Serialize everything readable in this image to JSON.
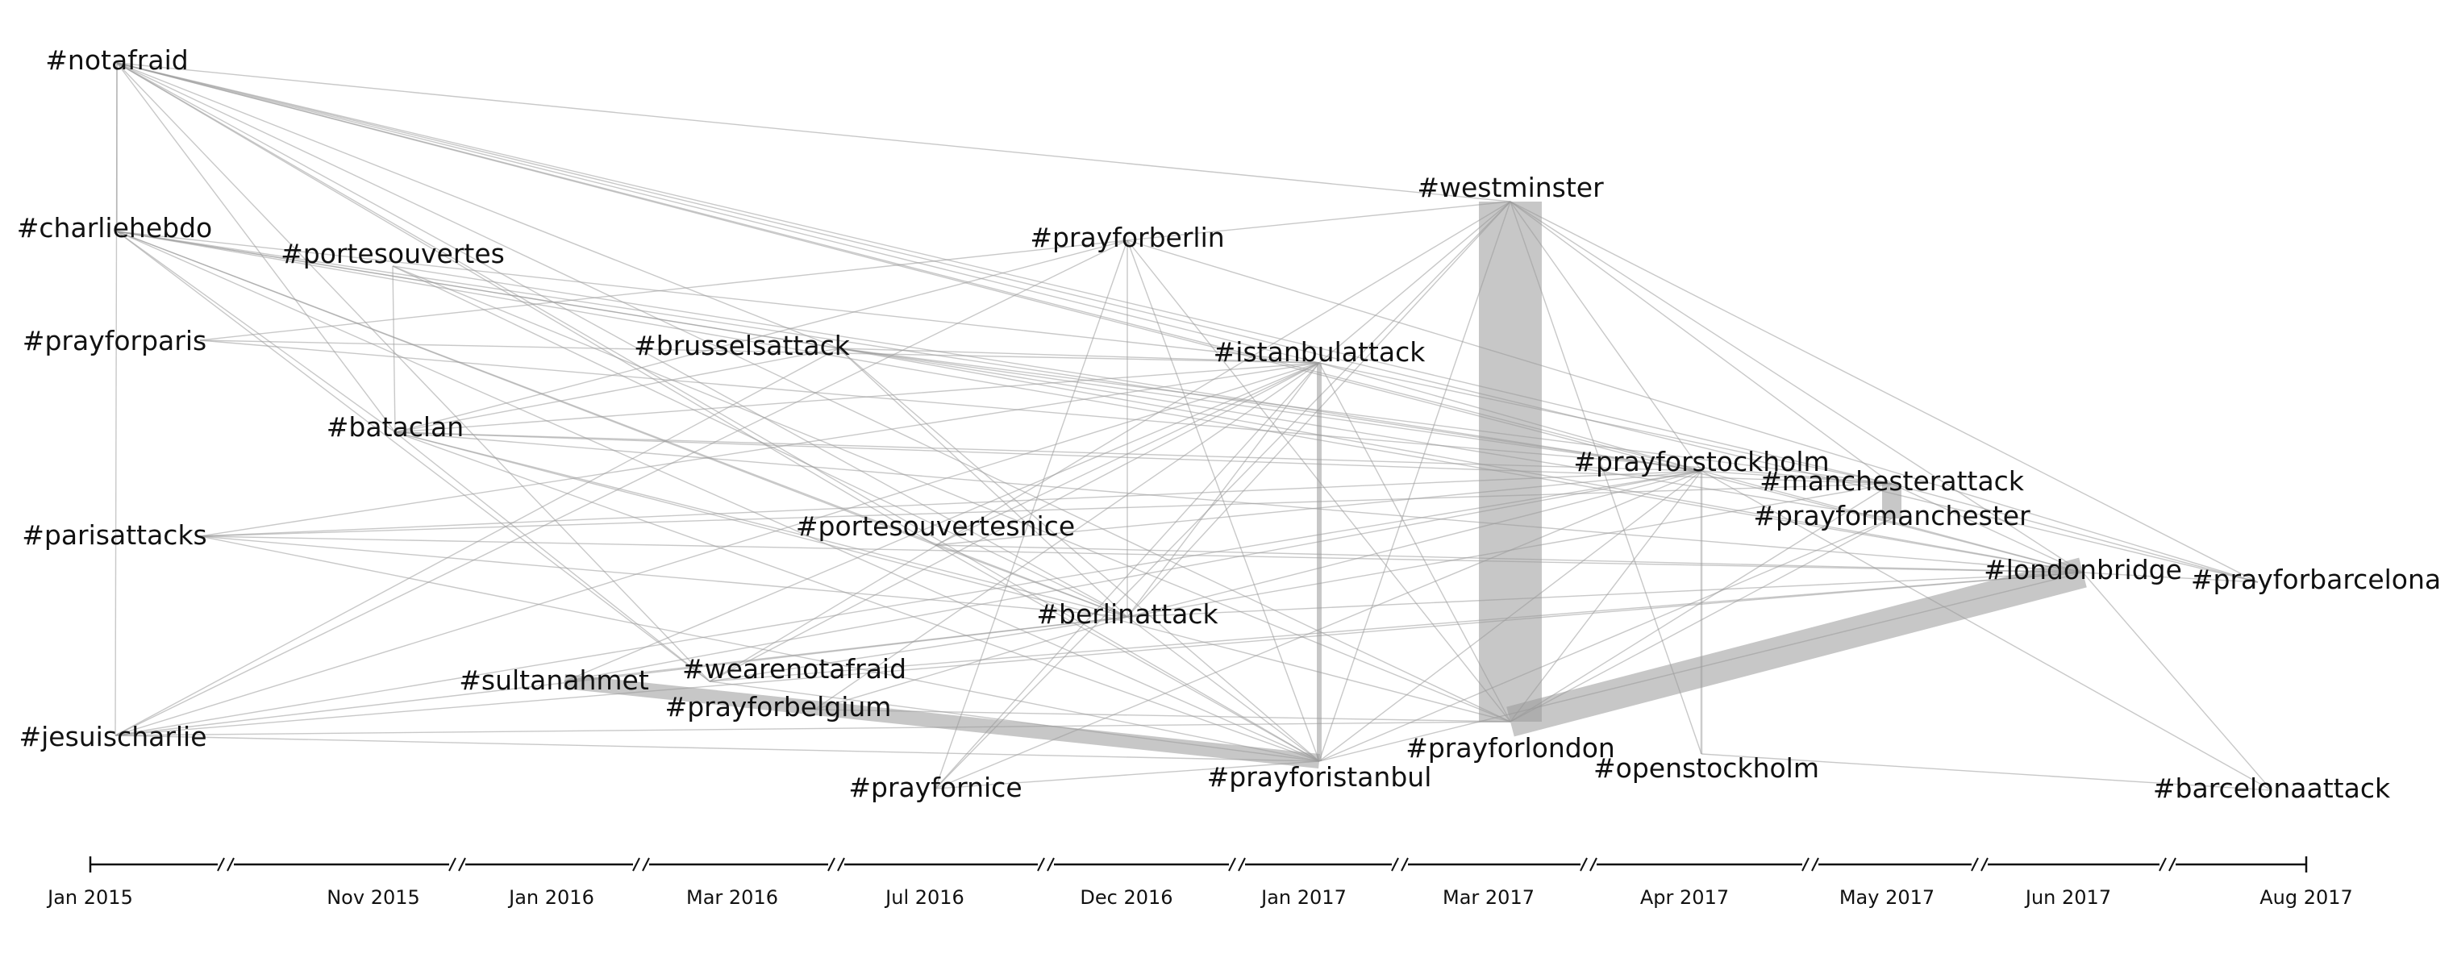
{
  "nodes": [
    {
      "id": "notafraid",
      "label": "#notafraid"
    },
    {
      "id": "charliehebdo",
      "label": "#charliehebdo"
    },
    {
      "id": "portesouvertes",
      "label": "#portesouvertes"
    },
    {
      "id": "prayforparis",
      "label": "#prayforparis"
    },
    {
      "id": "brusselsattack",
      "label": "#brusselsattack"
    },
    {
      "id": "bataclan",
      "label": "#bataclan"
    },
    {
      "id": "parisattacks",
      "label": "#parisattacks"
    },
    {
      "id": "portesouvertesnice",
      "label": "#portesouvertesnice"
    },
    {
      "id": "sultanahmet",
      "label": "#sultanahmet"
    },
    {
      "id": "wearenotafraid",
      "label": "#wearenotafraid"
    },
    {
      "id": "prayforbelgium",
      "label": "#prayforbelgium"
    },
    {
      "id": "jesuischarlie",
      "label": "#jesuischarlie"
    },
    {
      "id": "prayfornice",
      "label": "#prayfornice"
    },
    {
      "id": "prayforberlin",
      "label": "#prayforberlin"
    },
    {
      "id": "berlinattack",
      "label": "#berlinattack"
    },
    {
      "id": "istanbulattack",
      "label": "#istanbulattack"
    },
    {
      "id": "prayforistanbul",
      "label": "#prayforistanbul"
    },
    {
      "id": "westminster",
      "label": "#westminster"
    },
    {
      "id": "prayforlondon",
      "label": "#prayforlondon"
    },
    {
      "id": "prayforstockholm",
      "label": "#prayforstockholm"
    },
    {
      "id": "openstockholm",
      "label": "#openstockholm"
    },
    {
      "id": "manchesterattack",
      "label": "#manchesterattack"
    },
    {
      "id": "prayformanchester",
      "label": "#prayformanchester"
    },
    {
      "id": "londonbridge",
      "label": "#londonbridge"
    },
    {
      "id": "prayforbarcelona",
      "label": "#prayforbarcelona"
    },
    {
      "id": "barcelonaattack",
      "label": "#barcelonaattack"
    }
  ],
  "timeline_ticks": [
    "Jan 2015",
    "Nov 2015",
    "Jan 2016",
    "Mar 2016",
    "Jul 2016",
    "Dec 2016",
    "Jan 2017",
    "Mar 2017",
    "Apr 2017",
    "May 2017",
    "Jun 2017",
    "Aug 2017"
  ],
  "strong_links": [
    {
      "a": "westminster",
      "b": "prayforlondon"
    },
    {
      "a": "prayforlondon",
      "b": "londonbridge"
    },
    {
      "a": "sultanahmet",
      "b": "prayforistanbul"
    },
    {
      "a": "istanbulattack",
      "b": "prayforistanbul"
    },
    {
      "a": "manchesterattack",
      "b": "prayformanchester"
    },
    {
      "a": "prayforstockholm",
      "b": "openstockholm"
    }
  ],
  "links": [
    [
      "notafraid",
      "charliehebdo"
    ],
    [
      "notafraid",
      "jesuischarlie"
    ],
    [
      "notafraid",
      "westminster"
    ],
    [
      "notafraid",
      "istanbulattack"
    ],
    [
      "notafraid",
      "prayforstockholm"
    ],
    [
      "notafraid",
      "manchesterattack"
    ],
    [
      "notafraid",
      "londonbridge"
    ],
    [
      "notafraid",
      "bataclan"
    ],
    [
      "notafraid",
      "berlinattack"
    ],
    [
      "notafraid",
      "prayforlondon"
    ],
    [
      "notafraid",
      "portesouvertesnice"
    ],
    [
      "notafraid",
      "prayforistanbul"
    ],
    [
      "notafraid",
      "brusselsattack"
    ],
    [
      "notafraid",
      "wearenotafraid"
    ],
    [
      "notafraid",
      "prayforbarcelona"
    ],
    [
      "charliehebdo",
      "bataclan"
    ],
    [
      "charliehebdo",
      "brusselsattack"
    ],
    [
      "charliehebdo",
      "istanbulattack"
    ],
    [
      "charliehebdo",
      "berlinattack"
    ],
    [
      "charliehebdo",
      "prayforistanbul"
    ],
    [
      "charliehebdo",
      "prayforstockholm"
    ],
    [
      "charliehebdo",
      "londonbridge"
    ],
    [
      "charliehebdo",
      "wearenotafraid"
    ],
    [
      "charliehebdo",
      "portesouvertesnice"
    ],
    [
      "charliehebdo",
      "prayformanchester"
    ],
    [
      "portesouvertes",
      "bataclan"
    ],
    [
      "portesouvertes",
      "berlinattack"
    ],
    [
      "portesouvertes",
      "prayforstockholm"
    ],
    [
      "portesouvertes",
      "prayforlondon"
    ],
    [
      "prayforparis",
      "istanbulattack"
    ],
    [
      "prayforparis",
      "prayforberlin"
    ],
    [
      "prayforparis",
      "manchesterattack"
    ],
    [
      "brusselsattack",
      "istanbulattack"
    ],
    [
      "brusselsattack",
      "berlinattack"
    ],
    [
      "brusselsattack",
      "prayforstockholm"
    ],
    [
      "brusselsattack",
      "londonbridge"
    ],
    [
      "brusselsattack",
      "bataclan"
    ],
    [
      "brusselsattack",
      "prayforistanbul"
    ],
    [
      "brusselsattack",
      "manchesterattack"
    ],
    [
      "brusselsattack",
      "jesuischarlie"
    ],
    [
      "bataclan",
      "istanbulattack"
    ],
    [
      "bataclan",
      "prayforstockholm"
    ],
    [
      "bataclan",
      "manchesterattack"
    ],
    [
      "bataclan",
      "londonbridge"
    ],
    [
      "bataclan",
      "prayforistanbul"
    ],
    [
      "bataclan",
      "berlinattack"
    ],
    [
      "bataclan",
      "prayforlondon"
    ],
    [
      "bataclan",
      "prayforberlin"
    ],
    [
      "bataclan",
      "wearenotafraid"
    ],
    [
      "parisattacks",
      "istanbulattack"
    ],
    [
      "parisattacks",
      "prayforstockholm"
    ],
    [
      "parisattacks",
      "manchesterattack"
    ],
    [
      "parisattacks",
      "prayforistanbul"
    ],
    [
      "parisattacks",
      "berlinattack"
    ],
    [
      "parisattacks",
      "londonbridge"
    ],
    [
      "portesouvertesnice",
      "prayforstockholm"
    ],
    [
      "portesouvertesnice",
      "berlinattack"
    ],
    [
      "portesouvertesnice",
      "prayforistanbul"
    ],
    [
      "portesouvertesnice",
      "istanbulattack"
    ],
    [
      "portesouvertesnice",
      "londonbridge"
    ],
    [
      "sultanahmet",
      "istanbulattack"
    ],
    [
      "sultanahmet",
      "berlinattack"
    ],
    [
      "sultanahmet",
      "prayforstockholm"
    ],
    [
      "wearenotafraid",
      "westminster"
    ],
    [
      "wearenotafraid",
      "berlinattack"
    ],
    [
      "wearenotafraid",
      "prayforistanbul"
    ],
    [
      "wearenotafraid",
      "istanbulattack"
    ],
    [
      "wearenotafraid",
      "londonbridge"
    ],
    [
      "prayforbelgium",
      "istanbulattack"
    ],
    [
      "prayforbelgium",
      "prayforlondon"
    ],
    [
      "prayforbelgium",
      "berlinattack"
    ],
    [
      "jesuischarlie",
      "berlinattack"
    ],
    [
      "jesuischarlie",
      "istanbulattack"
    ],
    [
      "jesuischarlie",
      "prayforstockholm"
    ],
    [
      "jesuischarlie",
      "prayforistanbul"
    ],
    [
      "jesuischarlie",
      "prayforberlin"
    ],
    [
      "jesuischarlie",
      "prayforlondon"
    ],
    [
      "jesuischarlie",
      "londonbridge"
    ],
    [
      "prayfornice",
      "prayforberlin"
    ],
    [
      "prayfornice",
      "prayforistanbul"
    ],
    [
      "prayfornice",
      "istanbulattack"
    ],
    [
      "prayfornice",
      "westminster"
    ],
    [
      "prayfornice",
      "prayforstockholm"
    ],
    [
      "prayforberlin",
      "westminster"
    ],
    [
      "prayforberlin",
      "prayforistanbul"
    ],
    [
      "prayforberlin",
      "berlinattack"
    ],
    [
      "prayforberlin",
      "prayforlondon"
    ],
    [
      "prayforberlin",
      "prayforbarcelona"
    ],
    [
      "berlinattack",
      "istanbulattack"
    ],
    [
      "berlinattack",
      "westminster"
    ],
    [
      "berlinattack",
      "prayforstockholm"
    ],
    [
      "berlinattack",
      "londonbridge"
    ],
    [
      "berlinattack",
      "manchesterattack"
    ],
    [
      "berlinattack",
      "prayforistanbul"
    ],
    [
      "istanbulattack",
      "prayforstockholm"
    ],
    [
      "istanbulattack",
      "prayforlondon"
    ],
    [
      "istanbulattack",
      "manchesterattack"
    ],
    [
      "istanbulattack",
      "westminster"
    ],
    [
      "prayforistanbul",
      "westminster"
    ],
    [
      "prayforistanbul",
      "prayforstockholm"
    ],
    [
      "prayforistanbul",
      "prayformanchester"
    ],
    [
      "prayforistanbul",
      "londonbridge"
    ],
    [
      "westminster",
      "prayforstockholm"
    ],
    [
      "westminster",
      "manchesterattack"
    ],
    [
      "westminster",
      "londonbridge"
    ],
    [
      "westminster",
      "prayforbarcelona"
    ],
    [
      "westminster",
      "openstockholm"
    ],
    [
      "prayforlondon",
      "prayforstockholm"
    ],
    [
      "prayforlondon",
      "manchesterattack"
    ],
    [
      "prayforlondon",
      "prayformanchester"
    ],
    [
      "prayforstockholm",
      "manchesterattack"
    ],
    [
      "prayforstockholm",
      "londonbridge"
    ],
    [
      "prayforstockholm",
      "barcelonaattack"
    ],
    [
      "manchesterattack",
      "londonbridge"
    ],
    [
      "manchesterattack",
      "prayforbarcelona"
    ],
    [
      "londonbridge",
      "prayforbarcelona"
    ],
    [
      "londonbridge",
      "barcelonaattack"
    ],
    [
      "openstockholm",
      "barcelonaattack"
    ]
  ]
}
